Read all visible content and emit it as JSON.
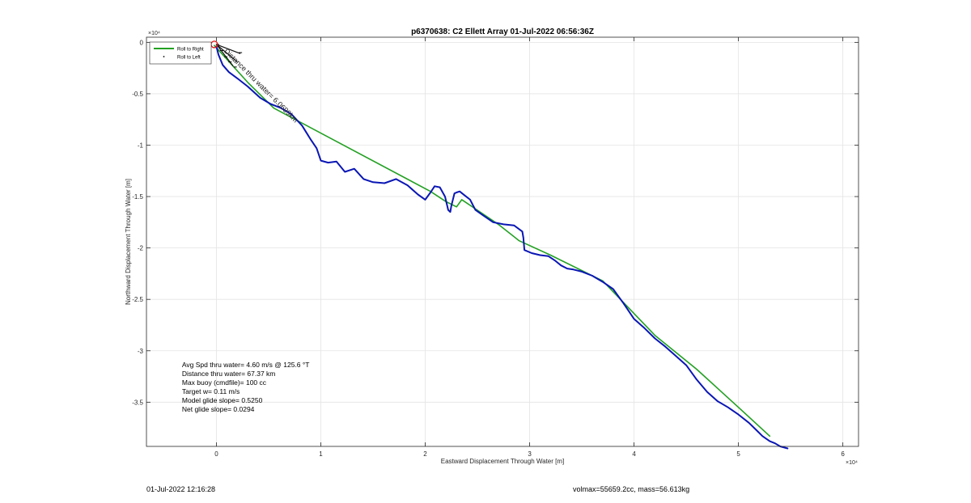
{
  "chart_data": {
    "type": "line",
    "title": "p6370638: C2 Ellett Array 01-Jul-2022 06:56:36Z",
    "xlabel": "Eastward Displacement Through Water [m]",
    "ylabel": "Northward Displacement Through Water [m]",
    "x_exponent_label": "×10⁴",
    "y_exponent_label": "×10⁴",
    "xlim": [
      -6700,
      61500
    ],
    "ylim": [
      -39300,
      500
    ],
    "x_ticks": [
      0,
      10000,
      20000,
      30000,
      40000,
      50000,
      60000
    ],
    "x_tick_labels": [
      "0",
      "1",
      "2",
      "3",
      "4",
      "5",
      "6"
    ],
    "y_ticks": [
      0,
      -5000,
      -10000,
      -15000,
      -20000,
      -25000,
      -30000,
      -35000
    ],
    "y_tick_labels": [
      "0",
      "-0.5",
      "-1",
      "-1.5",
      "-2",
      "-2.5",
      "-3",
      "-3.5"
    ],
    "grid": true,
    "legend_position": "top-left",
    "legend": [
      {
        "label": "Roll to Right",
        "style": "line",
        "color": "#22a022"
      },
      {
        "label": "Roll to Left",
        "style": "marker",
        "color": "#000000"
      }
    ],
    "series": [
      {
        "style": "line",
        "color": "#22a022",
        "x": [
          -200,
          3000,
          5500,
          20500,
          22000,
          23000,
          23500,
          27000,
          29000,
          32000,
          37000,
          42000,
          46000,
          50000,
          53000
        ],
        "y": [
          -300,
          -3900,
          -6400,
          -14500,
          -15500,
          -16000,
          -15300,
          -17700,
          -19300,
          -20700,
          -23200,
          -28500,
          -31800,
          -35500,
          -38300
        ]
      },
      {
        "style": "line",
        "color": "#0a16b4",
        "x": [
          0,
          200,
          600,
          1200,
          2000,
          3000,
          4200,
          5200,
          6200,
          7200,
          8200,
          9000,
          9600,
          10000,
          10700,
          11500,
          12300,
          13200,
          14100,
          15000,
          16100,
          17200,
          18300,
          19300,
          20000,
          20500,
          20900,
          21400,
          21900,
          22200,
          22400,
          22500,
          22800,
          23000,
          23300,
          23800,
          24300,
          24800,
          25500,
          26500,
          27500,
          28500,
          29300,
          29400,
          29500,
          30200,
          31000,
          31800,
          32400,
          33000,
          33600,
          34200,
          35000,
          36000,
          37000,
          38000,
          39000,
          40000,
          41000,
          42000,
          43000,
          44000,
          45000,
          46000,
          47000,
          48000,
          49000,
          50000,
          51000,
          51800,
          52300,
          53000,
          53500,
          54000,
          54700
        ],
        "y": [
          -400,
          -1200,
          -2200,
          -2900,
          -3500,
          -4300,
          -5400,
          -6000,
          -6400,
          -7000,
          -8100,
          -9400,
          -10300,
          -11500,
          -11700,
          -11600,
          -12600,
          -12300,
          -13300,
          -13600,
          -13700,
          -13300,
          -13900,
          -14800,
          -15300,
          -14600,
          -14000,
          -14100,
          -15000,
          -16300,
          -16500,
          -15900,
          -14700,
          -14600,
          -14500,
          -14900,
          -15300,
          -16300,
          -16800,
          -17500,
          -17700,
          -17800,
          -18400,
          -19000,
          -20200,
          -20500,
          -20700,
          -20800,
          -21200,
          -21700,
          -22000,
          -22100,
          -22300,
          -22700,
          -23300,
          -24000,
          -25400,
          -26900,
          -27800,
          -28800,
          -29600,
          -30500,
          -31400,
          -32800,
          -34000,
          -34900,
          -35500,
          -36200,
          -37000,
          -37800,
          -38300,
          -38800,
          -39000,
          -39300,
          -39500
        ]
      },
      {
        "style": "marker",
        "color": "#000000",
        "x": [
          100,
          500,
          900,
          1300,
          1800,
          2300
        ],
        "y": [
          -200,
          -800,
          -1400,
          -1900,
          -2400,
          -1000
        ]
      }
    ],
    "start_marker": {
      "x": -200,
      "y": -200,
      "color": "#e01010"
    },
    "track_annotation": "Distance thru water= 6.0699km",
    "annotations": [
      "Avg Spd thru water=  4.60 m/s @ 125.6 °T",
      "Distance thru water= 67.37 km",
      "Max buoy (cmdfile)= 100 cc",
      "Target w= 0.11 m/s",
      "Model glide slope= 0.5250",
      "Net glide slope= 0.0294"
    ]
  },
  "footer": {
    "left": "01-Jul-2022 12:16:28",
    "right": "volmax=55659.2cc, mass=56.613kg"
  }
}
